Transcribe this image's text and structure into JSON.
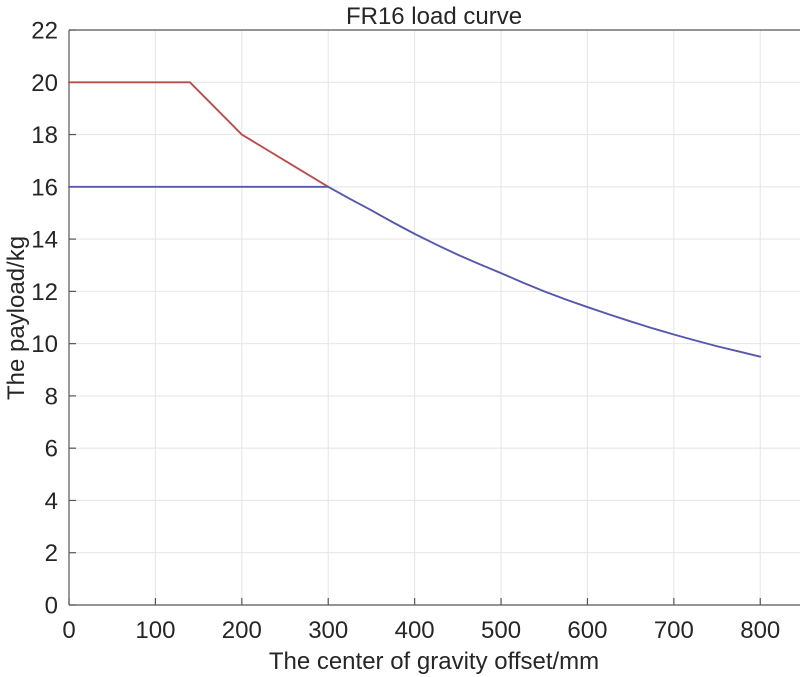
{
  "chart_data": {
    "type": "line",
    "title": "FR16 load curve",
    "xlabel": "The center of gravity offset/mm",
    "ylabel": "The payload/kg",
    "xlim": [
      0,
      846
    ],
    "ylim": [
      0,
      22
    ],
    "xticks": [
      0,
      100,
      200,
      300,
      400,
      500,
      600,
      700,
      800
    ],
    "yticks": [
      0,
      2,
      4,
      6,
      8,
      10,
      12,
      14,
      16,
      18,
      20,
      22
    ],
    "grid": true,
    "legend": null,
    "series": [
      {
        "id": "red-curve",
        "color": "#b94c4c",
        "points": [
          [
            0,
            20
          ],
          [
            140,
            20
          ],
          [
            200,
            18
          ],
          [
            300,
            16
          ]
        ]
      },
      {
        "id": "blue-curve",
        "color": "#5757ae",
        "points": [
          [
            0,
            16
          ],
          [
            300,
            16
          ],
          [
            325,
            15.54
          ],
          [
            350,
            15.1
          ],
          [
            375,
            14.64
          ],
          [
            400,
            14.2
          ],
          [
            425,
            13.79
          ],
          [
            450,
            13.4
          ],
          [
            475,
            13.04
          ],
          [
            500,
            12.7
          ],
          [
            525,
            12.34
          ],
          [
            550,
            12.0
          ],
          [
            575,
            11.69
          ],
          [
            600,
            11.4
          ],
          [
            625,
            11.12
          ],
          [
            650,
            10.85
          ],
          [
            675,
            10.59
          ],
          [
            700,
            10.35
          ],
          [
            725,
            10.12
          ],
          [
            750,
            9.9
          ],
          [
            775,
            9.7
          ],
          [
            800,
            9.5
          ]
        ]
      }
    ]
  }
}
